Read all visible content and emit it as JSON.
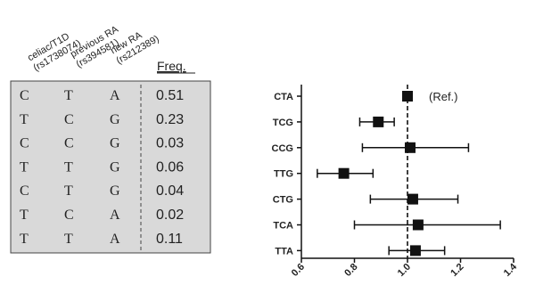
{
  "table": {
    "headers": [
      {
        "line1": "celiac/T1D",
        "line2": "(rs1738074)"
      },
      {
        "line1": "previous RA",
        "line2": "(rs394581)"
      },
      {
        "line1": "new RA",
        "line2": "(rs212389)"
      }
    ],
    "freq_header": "Freq.",
    "rows": [
      {
        "a1": "C",
        "a2": "T",
        "a3": "A",
        "freq": "0.51"
      },
      {
        "a1": "T",
        "a2": "C",
        "a3": "G",
        "freq": "0.23"
      },
      {
        "a1": "C",
        "a2": "C",
        "a3": "G",
        "freq": "0.03"
      },
      {
        "a1": "T",
        "a2": "T",
        "a3": "G",
        "freq": "0.06"
      },
      {
        "a1": "C",
        "a2": "T",
        "a3": "G",
        "freq": "0.04"
      },
      {
        "a1": "T",
        "a2": "C",
        "a3": "A",
        "freq": "0.02"
      },
      {
        "a1": "T",
        "a2": "T",
        "a3": "A",
        "freq": "0.11"
      }
    ]
  },
  "colors": {
    "table_bg": "#d9d9d9",
    "marker": "#111111",
    "axis": "#111111",
    "ref_line": "#111111"
  },
  "chart_data": {
    "type": "scatter",
    "subtype": "forest-plot",
    "categories": [
      "CTA",
      "TCG",
      "CCG",
      "TTG",
      "CTG",
      "TCA",
      "TTA"
    ],
    "points": [
      {
        "label": "CTA",
        "estimate": 1.0,
        "lower": 1.0,
        "upper": 1.0,
        "annotation": "(Ref.)"
      },
      {
        "label": "TCG",
        "estimate": 0.89,
        "lower": 0.82,
        "upper": 0.95
      },
      {
        "label": "CCG",
        "estimate": 1.01,
        "lower": 0.83,
        "upper": 1.23
      },
      {
        "label": "TTG",
        "estimate": 0.76,
        "lower": 0.66,
        "upper": 0.87
      },
      {
        "label": "CTG",
        "estimate": 1.02,
        "lower": 0.86,
        "upper": 1.19
      },
      {
        "label": "TCA",
        "estimate": 1.04,
        "lower": 0.8,
        "upper": 1.35
      },
      {
        "label": "TTA",
        "estimate": 1.03,
        "lower": 0.93,
        "upper": 1.14
      }
    ],
    "xlim": [
      0.6,
      1.4
    ],
    "xticks": [
      "0.6",
      "0.8",
      "1.0",
      "1.2",
      "1.4"
    ],
    "reference_line": 1.0,
    "xlabel": "",
    "ylabel": "",
    "title": "",
    "grid": false,
    "legend": "none"
  }
}
